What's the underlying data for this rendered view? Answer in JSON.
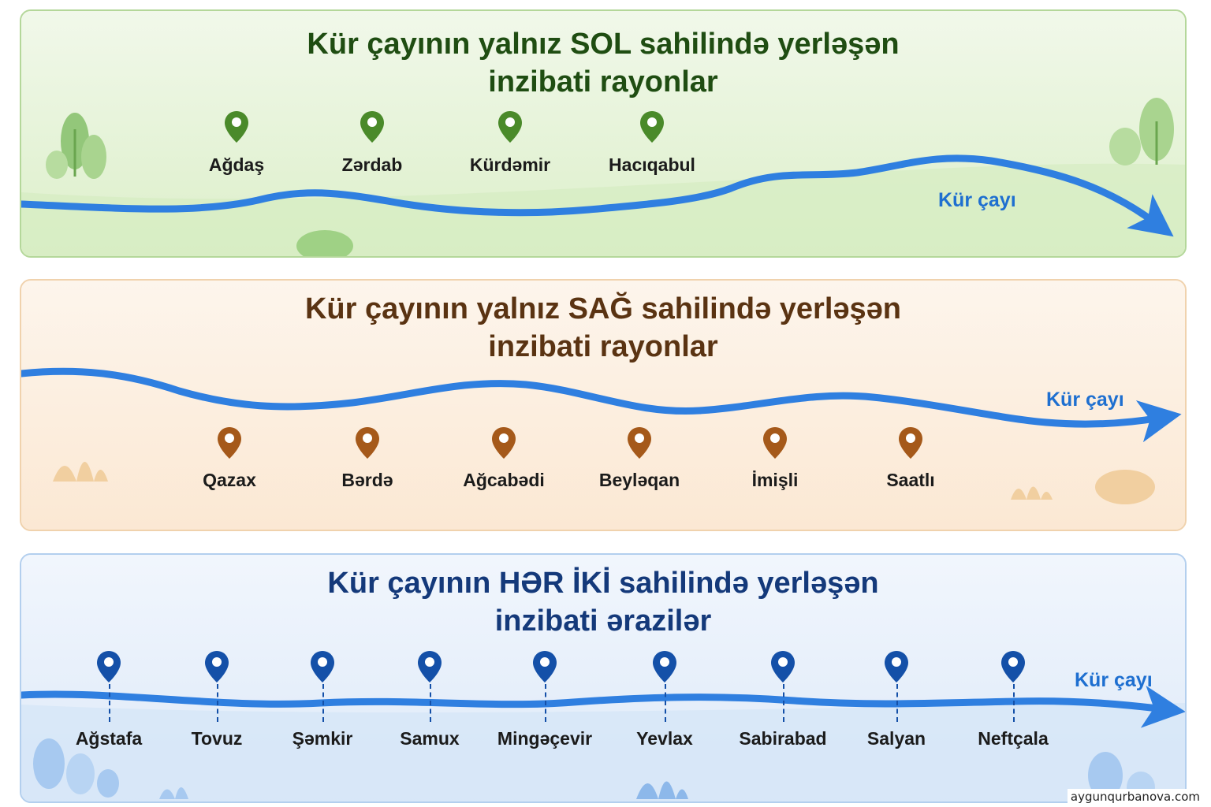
{
  "panels": [
    {
      "title_line1": "Kür çayının yalnız SOL sahilində yerləşən",
      "title_line2": "inzibati rayonlar",
      "river_label": "Kür çayı",
      "colors": {
        "title": "#1f4d12",
        "pin": "#4a8a2a",
        "bg": "#eaf4de",
        "border": "#a9d08e"
      },
      "pins": [
        "Ağdaş",
        "Zərdab",
        "Kürdəmir",
        "Hacıqabul"
      ]
    },
    {
      "title_line1": "Kür çayının yalnız SAĞ sahilində yerləşən",
      "title_line2": "inzibati rayonlar",
      "river_label": "Kür çayı",
      "colors": {
        "title": "#5a3312",
        "pin": "#a5591a",
        "bg": "#fcf1e4",
        "border": "#efcfa6"
      },
      "pins": [
        "Qazax",
        "Bərdə",
        "Ağcabədi",
        "Beyləqan",
        "İmişli",
        "Saatlı"
      ]
    },
    {
      "title_line1": "Kür çayının HƏR İKİ sahilində yerləşən",
      "title_line2": "inzibati ərazilər",
      "river_label": "Kür çayı",
      "colors": {
        "title": "#14397a",
        "pin": "#1450a8",
        "bg": "#e9f2fc",
        "border": "#a9c8ea"
      },
      "pins": [
        "Ağstafa",
        "Tovuz",
        "Şəmkir",
        "Samux",
        "Mingəçevir",
        "Yevlax",
        "Sabirabad",
        "Salyan",
        "Neftçala"
      ]
    }
  ],
  "colors": {
    "river": "#2f7fe0",
    "river_label": "#1e6fd0"
  },
  "watermark": "aygunqurbanova.com"
}
